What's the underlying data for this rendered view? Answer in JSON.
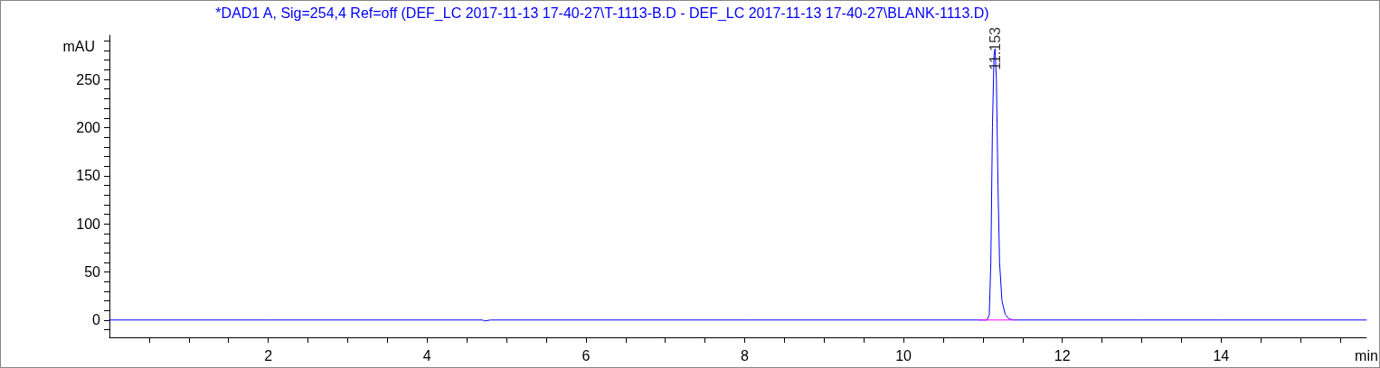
{
  "chart_data": {
    "type": "line",
    "title": "*DAD1 A, Sig=254,4 Ref=off (DEF_LC 2017-11-13 17-40-27\\T-1113-B.D - DEF_LC 2017-11-13 17-40-27\\BLANK-1113.D)",
    "xlabel": "min",
    "ylabel": "mAU",
    "series": [
      {
        "color": "#0000ff",
        "x": [
          0,
          2,
          4,
          4.7,
          4.72,
          4.8,
          6,
          7,
          8,
          10,
          10.5,
          11.0,
          11.05,
          11.08,
          11.1,
          11.12,
          11.14,
          11.153,
          11.17,
          11.19,
          11.21,
          11.24,
          11.28,
          11.33,
          11.4,
          12,
          13,
          14,
          15,
          15.83
        ],
        "values": [
          0,
          0,
          0,
          0,
          -1,
          0,
          0,
          0,
          0,
          0,
          0,
          0,
          0,
          5,
          60,
          200,
          275,
          282,
          250,
          140,
          60,
          20,
          6,
          1,
          0,
          0,
          0,
          0,
          0,
          0
        ]
      },
      {
        "color": "#ff00ff",
        "x": [
          10.95,
          11.4
        ],
        "values": [
          0,
          0
        ]
      }
    ],
    "annotations": [
      {
        "text": "11.153",
        "x": 11.153,
        "y": 282
      }
    ],
    "xlim": [
      0,
      15.83
    ],
    "ylim": [
      -18,
      296
    ],
    "xticks": [
      {
        "value": 0.5,
        "label": null
      },
      {
        "value": 1,
        "label": null
      },
      {
        "value": 1.5,
        "label": null
      },
      2,
      {
        "value": 2.5,
        "label": null
      },
      {
        "value": 3,
        "label": null
      },
      {
        "value": 3.5,
        "label": null
      },
      4,
      {
        "value": 4.5,
        "label": null
      },
      {
        "value": 5,
        "label": null
      },
      {
        "value": 5.5,
        "label": null
      },
      6,
      {
        "value": 6.5,
        "label": null
      },
      {
        "value": 7,
        "label": null
      },
      {
        "value": 7.5,
        "label": null
      },
      8,
      {
        "value": 8.5,
        "label": null
      },
      {
        "value": 9,
        "label": null
      },
      {
        "value": 9.5,
        "label": null
      },
      10,
      {
        "value": 10.5,
        "label": null
      },
      {
        "value": 11,
        "label": null
      },
      {
        "value": 11.5,
        "label": null
      },
      12,
      {
        "value": 12.5,
        "label": null
      },
      {
        "value": 13,
        "label": null
      },
      {
        "value": 13.5,
        "label": null
      },
      14,
      {
        "value": 14.5,
        "label": null
      },
      {
        "value": 15,
        "label": null
      },
      {
        "value": 15.5,
        "label": null
      }
    ],
    "yticks": [
      {
        "value": -10,
        "label": null
      },
      0,
      {
        "value": 10,
        "label": null
      },
      {
        "value": 20,
        "label": null
      },
      {
        "value": 30,
        "label": null
      },
      {
        "value": 40,
        "label": null
      },
      50,
      {
        "value": 60,
        "label": null
      },
      {
        "value": 70,
        "label": null
      },
      {
        "value": 80,
        "label": null
      },
      {
        "value": 90,
        "label": null
      },
      100,
      {
        "value": 110,
        "label": null
      },
      {
        "value": 120,
        "label": null
      },
      {
        "value": 130,
        "label": null
      },
      {
        "value": 140,
        "label": null
      },
      150,
      {
        "value": 160,
        "label": null
      },
      {
        "value": 170,
        "label": null
      },
      {
        "value": 180,
        "label": null
      },
      {
        "value": 190,
        "label": null
      },
      200,
      {
        "value": 210,
        "label": null
      },
      {
        "value": 220,
        "label": null
      },
      {
        "value": 230,
        "label": null
      },
      {
        "value": 240,
        "label": null
      },
      250,
      {
        "value": 260,
        "label": null
      },
      {
        "value": 270,
        "label": null
      },
      {
        "value": 280,
        "label": null
      },
      {
        "value": 290,
        "label": null
      }
    ],
    "grid": false,
    "marker": "none",
    "line_style": "solid"
  }
}
